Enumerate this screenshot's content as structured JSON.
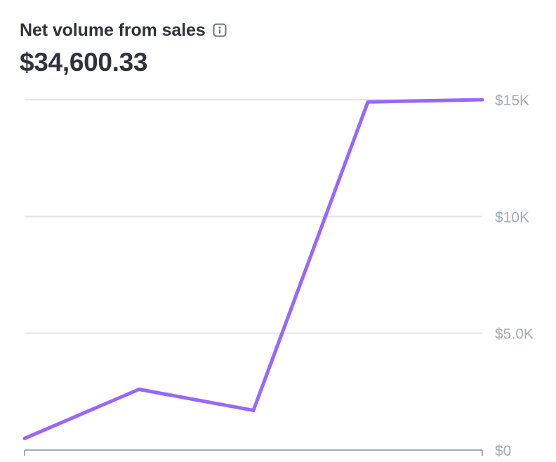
{
  "header": {
    "title": "Net volume from sales",
    "info_icon": "info-icon",
    "value": "$34,600.33"
  },
  "colors": {
    "line": "#9966ff",
    "grid": "#e3e3ea",
    "axis": "#a3acb9",
    "text": "#30313d"
  },
  "chart_data": {
    "type": "line",
    "title": "Net volume from sales",
    "xlabel": "",
    "ylabel": "",
    "ylim": [
      0,
      15000
    ],
    "y_ticks": [
      {
        "value": 0,
        "label": "$0"
      },
      {
        "value": 5000,
        "label": "$5.0K"
      },
      {
        "value": 10000,
        "label": "$10K"
      },
      {
        "value": 15000,
        "label": "$15K"
      }
    ],
    "grid": true,
    "series": [
      {
        "values": [
          500,
          2600,
          1700,
          14900,
          15000
        ]
      }
    ]
  }
}
